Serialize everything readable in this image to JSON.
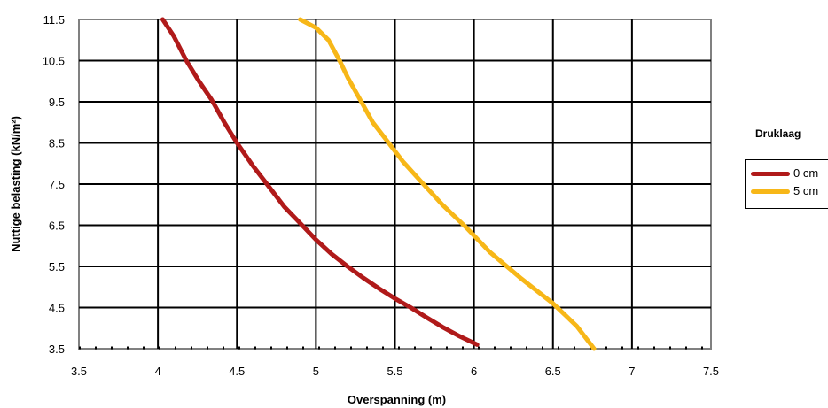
{
  "chart_data": {
    "type": "line",
    "title": "",
    "xlabel": "Overspanning (m)",
    "ylabel": "Nuttige belasting (kN/m²)",
    "xlim": [
      3.5,
      7.5
    ],
    "ylim": [
      3.5,
      11.5
    ],
    "xticks": [
      "3.5",
      "4",
      "4.5",
      "5",
      "5.5",
      "6",
      "6.5",
      "7",
      "7.5"
    ],
    "yticks": [
      "3.5",
      "4.5",
      "5.5",
      "6.5",
      "7.5",
      "8.5",
      "9.5",
      "10.5",
      "11.5"
    ],
    "grid": true,
    "legend_title": "Druklaag",
    "legend_position": "right",
    "series": [
      {
        "name": "0 cm",
        "color": "#b01a1a",
        "x": [
          4.03,
          4.1,
          4.18,
          4.26,
          4.34,
          4.42,
          4.5,
          4.6,
          4.7,
          4.8,
          4.9,
          5.0,
          5.1,
          5.2,
          5.3,
          5.4,
          5.5,
          5.6,
          5.7,
          5.8,
          5.9,
          6.02
        ],
        "y": [
          11.5,
          11.1,
          10.5,
          10.0,
          9.55,
          9.0,
          8.5,
          7.95,
          7.45,
          6.95,
          6.55,
          6.15,
          5.8,
          5.5,
          5.22,
          4.96,
          4.72,
          4.5,
          4.26,
          4.03,
          3.82,
          3.6
        ]
      },
      {
        "name": "5 cm",
        "color": "#f7b718",
        "x": [
          4.9,
          5.0,
          5.08,
          5.15,
          5.2,
          5.28,
          5.36,
          5.46,
          5.55,
          5.68,
          5.8,
          5.95,
          6.1,
          6.3,
          6.5,
          6.65,
          6.76
        ],
        "y": [
          11.5,
          11.3,
          11.0,
          10.5,
          10.1,
          9.55,
          9.0,
          8.5,
          8.05,
          7.5,
          7.0,
          6.45,
          5.85,
          5.2,
          4.6,
          4.05,
          3.5
        ]
      }
    ]
  }
}
